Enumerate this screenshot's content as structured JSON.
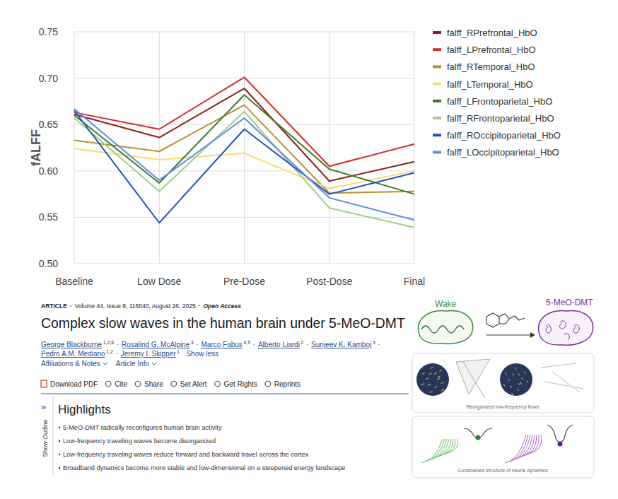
{
  "chart_data": {
    "type": "line",
    "categories": [
      "Baseline",
      "Low Dose",
      "Pre-Dose",
      "Post-Dose",
      "Final"
    ],
    "ylabel": "fALFF",
    "ylim": [
      0.5,
      0.75
    ],
    "yticks": [
      {
        "value": 0.5,
        "label": "0.50"
      },
      0.55,
      {
        "value": 0.6,
        "label": "0.60"
      },
      0.65,
      {
        "value": 0.7,
        "label": "0.70"
      },
      0.75
    ],
    "grid": true,
    "legend": "right",
    "series": [
      {
        "name": "falff_RPrefrontal_HbO",
        "color": "#8b1e1e",
        "values": [
          0.661,
          0.636,
          0.689,
          0.589,
          0.61
        ]
      },
      {
        "name": "falff_LPrefrontal_HbO",
        "color": "#d62b2b",
        "values": [
          0.663,
          0.645,
          0.701,
          0.605,
          0.629
        ]
      },
      {
        "name": "falff_RTemporal_HbO",
        "color": "#b8912f",
        "values": [
          0.633,
          0.621,
          0.671,
          0.576,
          0.578
        ]
      },
      {
        "name": "falff_LTemporal_HbO",
        "color": "#f7dc72",
        "values": [
          0.624,
          0.612,
          0.619,
          0.581,
          0.6
        ]
      },
      {
        "name": "falff_LFrontoparietal_HbO",
        "color": "#3f7d2a",
        "values": [
          0.66,
          0.587,
          0.682,
          0.602,
          0.575
        ]
      },
      {
        "name": "falff_RFrontoparietal_HbO",
        "color": "#a3cc86",
        "values": [
          0.657,
          0.578,
          0.664,
          0.56,
          0.539
        ]
      },
      {
        "name": "falff_ROccipitoparietal_HbO",
        "color": "#1f4fc4",
        "values": [
          0.665,
          0.544,
          0.645,
          0.575,
          0.598
        ]
      },
      {
        "name": "falff_LOccipitoparietal_HbO",
        "color": "#5a8ee6",
        "values": [
          0.667,
          0.59,
          0.657,
          0.571,
          0.547
        ]
      }
    ]
  },
  "article": {
    "meta": {
      "label": "ARTICLE",
      "citation": "Volume 44, Issue 8, 116040, August 26, 2025",
      "access": "Open Access",
      "separator": "·"
    },
    "title": "Complex slow waves in the human brain under 5-MeO-DMT",
    "authors": [
      {
        "name": "George Blackburne",
        "affiliations": "1,2,6"
      },
      {
        "name": "Rosalind G. McAlpine",
        "affiliations": "3"
      },
      {
        "name": "Marco Fabus",
        "affiliations": "4,5"
      },
      {
        "name": "Alberto Liardi",
        "affiliations": "2"
      },
      {
        "name": "Sunjeev K. Kamboj",
        "affiliations": "3"
      },
      {
        "name": "Pedro A.M. Mediano",
        "affiliations": "1,2"
      },
      {
        "name": "Jeremy I. Skipper",
        "affiliations": "1"
      }
    ],
    "show_less": "Show less",
    "links": [
      "Affiliations & Notes",
      "Article Info"
    ],
    "toolbar": [
      "Download PDF",
      "Cite",
      "Share",
      "Set Alert",
      "Get Rights",
      "Reprints"
    ],
    "outline": {
      "icon": "»",
      "label": "Show Outline"
    },
    "highlights": {
      "heading": "Highlights",
      "items": [
        "5-MeO-DMT radically reconfigures human brain activity",
        "Low-frequency traveling waves become disorganized",
        "Low-frequency traveling waves reduce forward and backward travel across the cortex",
        "Broadband dynamics become more stable and low-dimensional on a steepened energy landscape"
      ]
    },
    "graphical_abstract": {
      "states": [
        "Wake",
        "5-MeO-DMT"
      ],
      "captions": [
        "Reorganized low-frequency flows",
        "Constrained structure of neural dynamics"
      ]
    }
  }
}
